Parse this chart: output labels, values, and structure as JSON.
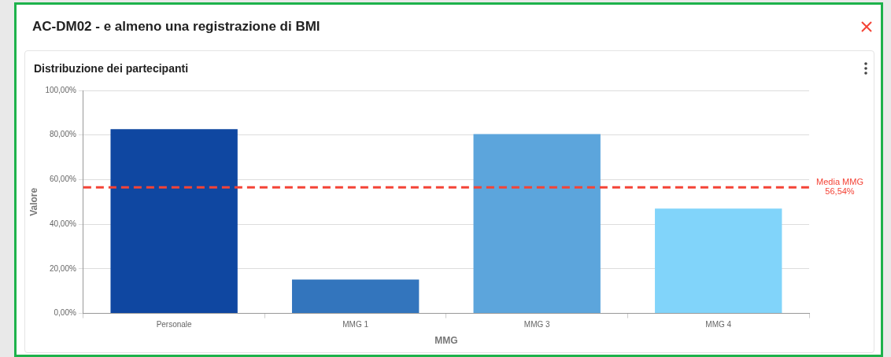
{
  "chart_data": {
    "type": "bar",
    "title": "AC-DM02 - e almeno una registrazione di BMI",
    "subtitle": "Distribuzione dei partecipanti",
    "xlabel": "MMG",
    "ylabel": "Valore",
    "categories": [
      "Personale",
      "MMG 1",
      "MMG 3",
      "MMG 4"
    ],
    "values": [
      82.6,
      15.2,
      80.4,
      47.0
    ],
    "colors": [
      "#0f47a1",
      "#3375bd",
      "#5ca5dc",
      "#81d4fa"
    ],
    "ylim": [
      0,
      100
    ],
    "yticks": [
      {
        "value": 0,
        "label": "0,00%"
      },
      {
        "value": 20,
        "label": "20,00%"
      },
      {
        "value": 40,
        "label": "40,00%"
      },
      {
        "value": 60,
        "label": "60,00%"
      },
      {
        "value": 80,
        "label": "80,00%"
      },
      {
        "value": 100,
        "label": "100,00%"
      }
    ],
    "grid": "y",
    "legend": false,
    "ref_lines": [
      {
        "axis": "y",
        "value": 56.54,
        "label": "Media MMG 56,54%",
        "color": "#f44336",
        "line_style": "dashed"
      }
    ]
  }
}
